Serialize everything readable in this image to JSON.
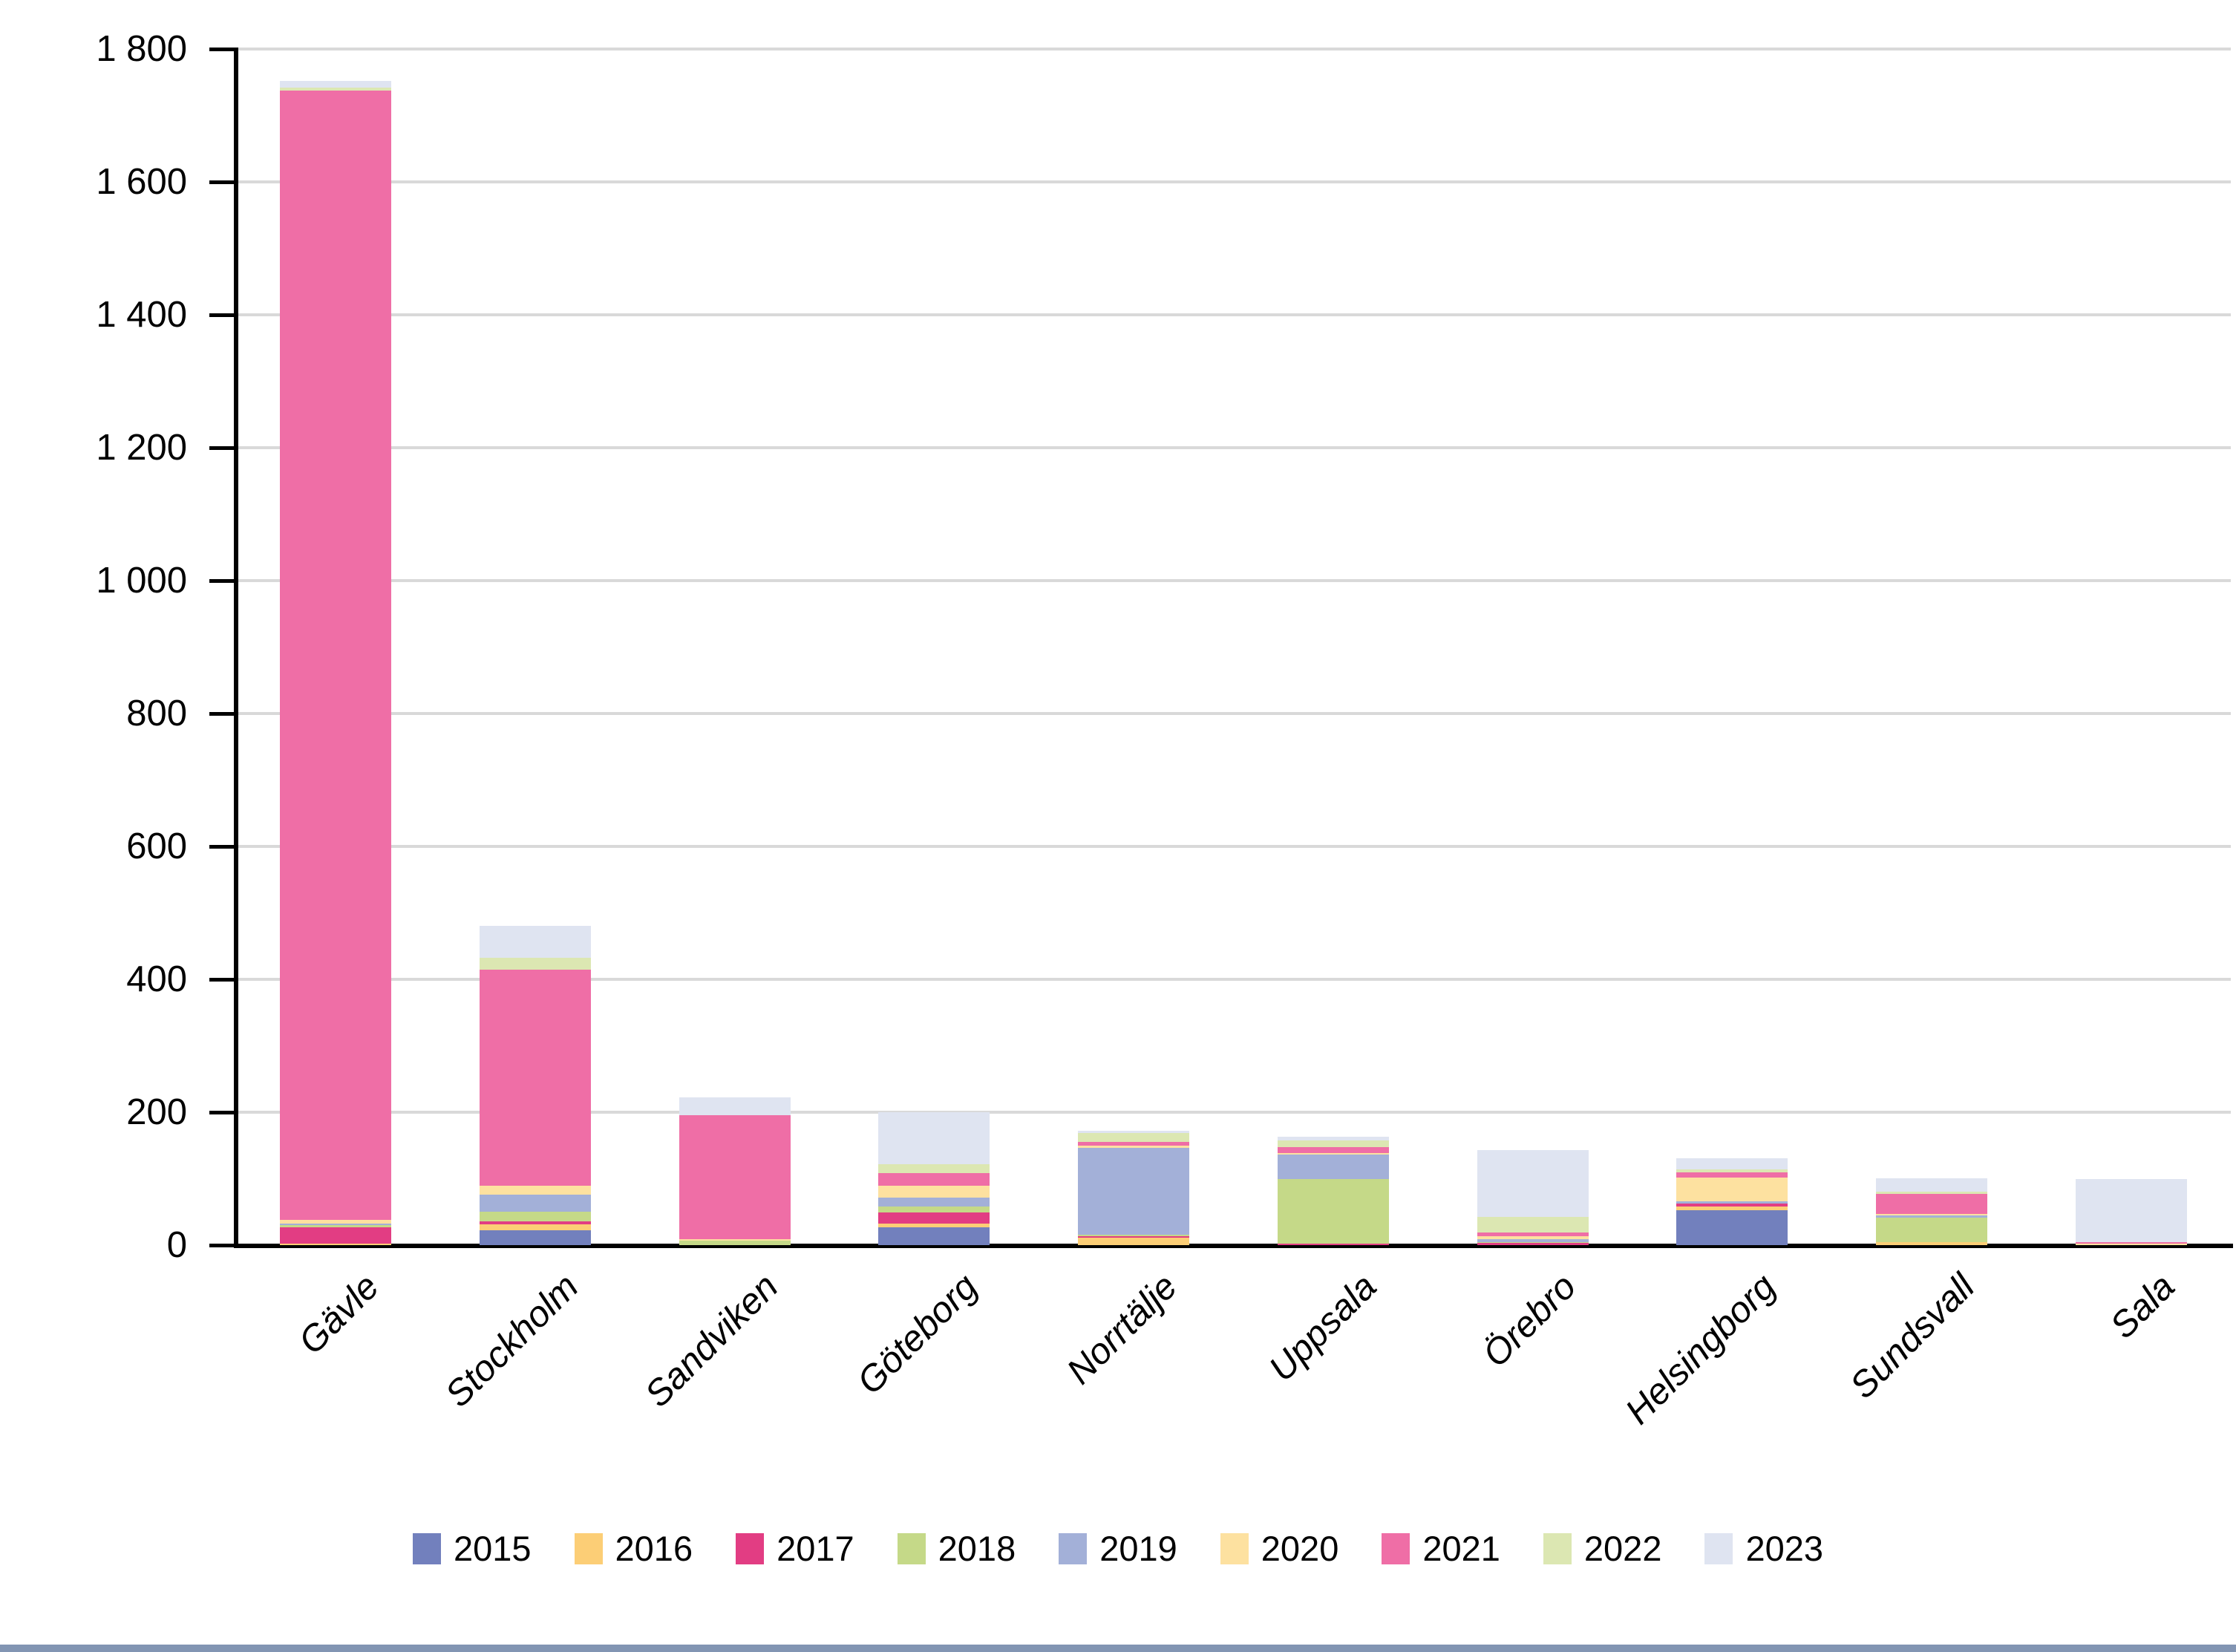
{
  "chart_data": {
    "type": "bar",
    "stacked": true,
    "title": "",
    "xlabel": "",
    "ylabel": "",
    "categories": [
      "Gävle",
      "Stockholm",
      "Sandviken",
      "Göteborg",
      "Norrtälje",
      "Uppsala",
      "Örebro",
      "Helsingborg",
      "Sundsvall",
      "Sala"
    ],
    "series": [
      {
        "name": "2015",
        "color": "#7280bd",
        "values": [
          0,
          22,
          0,
          27,
          0,
          0,
          0,
          52,
          0,
          0
        ]
      },
      {
        "name": "2016",
        "color": "#fcce76",
        "values": [
          2,
          9,
          0,
          5,
          11,
          0,
          0,
          6,
          4,
          0
        ]
      },
      {
        "name": "2017",
        "color": "#e23d83",
        "values": [
          25,
          5,
          0,
          17,
          2,
          2,
          3,
          5,
          1,
          0
        ]
      },
      {
        "name": "2018",
        "color": "#c5d988",
        "values": [
          3,
          14,
          7,
          9,
          3,
          98,
          2,
          0,
          36,
          0
        ]
      },
      {
        "name": "2019",
        "color": "#a3b0d8",
        "values": [
          2,
          26,
          0,
          14,
          130,
          36,
          4,
          3,
          4,
          0
        ]
      },
      {
        "name": "2020",
        "color": "#fde1a0",
        "values": [
          6,
          14,
          2,
          17,
          4,
          3,
          5,
          36,
          2,
          2
        ]
      },
      {
        "name": "2021",
        "color": "#ef6ea6",
        "values": [
          1700,
          325,
          187,
          19,
          5,
          9,
          5,
          8,
          30,
          2
        ]
      },
      {
        "name": "2022",
        "color": "#dce7b2",
        "values": [
          4,
          17,
          0,
          14,
          14,
          10,
          24,
          4,
          4,
          0
        ]
      },
      {
        "name": "2023",
        "color": "#dfe4f1",
        "values": [
          10,
          48,
          26,
          78,
          3,
          5,
          100,
          17,
          20,
          96
        ]
      }
    ],
    "totals": [
      1752,
      480,
      222,
      200,
      172,
      163,
      143,
      131,
      101,
      100
    ],
    "ylim": [
      0,
      1800
    ],
    "yticks": [
      {
        "label": "1 800",
        "value": 1800
      },
      {
        "label": "1 600",
        "value": 1600
      },
      {
        "label": "1 400",
        "value": 1400
      },
      {
        "label": "1 200",
        "value": 1200
      },
      {
        "label": "1 000",
        "value": 1000
      },
      {
        "label": "800",
        "value": 800
      },
      {
        "label": "600",
        "value": 600
      },
      {
        "label": "400",
        "value": 400
      },
      {
        "label": "200",
        "value": 200
      },
      {
        "label": "0",
        "value": 0
      }
    ],
    "grid": "horizontal",
    "gridline_color": "#d9d9d9",
    "axis_color": "#000000",
    "legend_position": "bottom",
    "legend_labels": [
      "2015",
      "2016",
      "2017",
      "2018",
      "2019",
      "2020",
      "2021",
      "2022",
      "2023"
    ],
    "window_bottom_border_color": "#8295b3"
  }
}
